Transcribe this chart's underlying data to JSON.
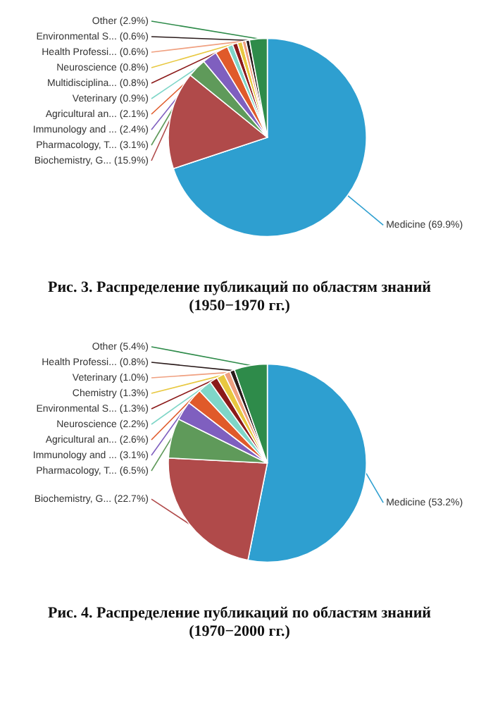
{
  "chart_data": [
    {
      "type": "pie",
      "title": "Рис. 3. Распределение публикаций по областям знаний\n(1950−1970 гг.)",
      "categories": [
        "Medicine (69.9%)",
        "Biochemistry, G... (15.9%)",
        "Pharmacology, T... (3.1%)",
        "Immunology and ... (2.4%)",
        "Agricultural an... (2.1%)",
        "Veterinary (0.9%)",
        "Multidisciplina... (0.8%)",
        "Neuroscience (0.8%)",
        "Health Professi... (0.6%)",
        "Environmental S... (0.6%)",
        "Other (2.9%)"
      ],
      "values": [
        69.9,
        15.9,
        3.1,
        2.4,
        2.1,
        0.9,
        0.8,
        0.8,
        0.6,
        0.6,
        2.9
      ],
      "colors": [
        "#2e9fd0",
        "#b04a4a",
        "#5f9a5a",
        "#7f5fbf",
        "#e05a2a",
        "#7fd6c8",
        "#8b1a1a",
        "#e8c840",
        "#f0a080",
        "#2a1a1a",
        "#2e8b4a"
      ]
    },
    {
      "type": "pie",
      "title": "Рис. 4. Распределение публикаций по областям знаний\n(1970−2000 гг.)",
      "categories": [
        "Medicine (53.2%)",
        "Biochemistry, G... (22.7%)",
        "Pharmacology, T... (6.5%)",
        "Immunology and ... (3.1%)",
        "Agricultural an... (2.6%)",
        "Neuroscience (2.2%)",
        "Environmental S... (1.3%)",
        "Chemistry (1.3%)",
        "Veterinary (1.0%)",
        "Health Professi... (0.8%)",
        "Other (5.4%)"
      ],
      "values": [
        53.2,
        22.7,
        6.5,
        3.1,
        2.6,
        2.2,
        1.3,
        1.3,
        1.0,
        0.8,
        5.4
      ],
      "colors": [
        "#2e9fd0",
        "#b04a4a",
        "#5f9a5a",
        "#7f5fbf",
        "#e05a2a",
        "#7fd6c8",
        "#8b1a1a",
        "#e8c840",
        "#f0a080",
        "#2a1a1a",
        "#2e8b4a"
      ]
    }
  ]
}
